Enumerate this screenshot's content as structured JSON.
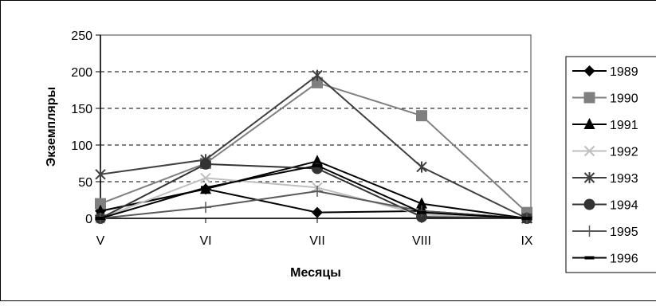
{
  "chart_data": {
    "type": "line",
    "title": "",
    "xlabel": "Месяцы",
    "ylabel": "Экземпляры",
    "categories": [
      "V",
      "VI",
      "VII",
      "VIII",
      "IX"
    ],
    "ylim": [
      0,
      250
    ],
    "yticks": [
      "0",
      "50",
      "100",
      "150",
      "200",
      "250"
    ],
    "grid": "horizontal-dashed",
    "legend_position": "right",
    "series": [
      {
        "name": "1989",
        "values": [
          10,
          40,
          8,
          10,
          0
        ],
        "color": "#000000",
        "marker": "diamond"
      },
      {
        "name": "1990",
        "values": [
          20,
          75,
          185,
          140,
          8
        ],
        "color": "#7f7f7f",
        "marker": "square"
      },
      {
        "name": "1991",
        "values": [
          10,
          40,
          78,
          20,
          0
        ],
        "color": "#000000",
        "marker": "triangle"
      },
      {
        "name": "1992",
        "values": [
          0,
          55,
          42,
          5,
          0
        ],
        "color": "#bfbfbf",
        "marker": "x"
      },
      {
        "name": "1993",
        "values": [
          60,
          80,
          195,
          70,
          0
        ],
        "color": "#404040",
        "marker": "star"
      },
      {
        "name": "1994",
        "values": [
          0,
          74,
          68,
          2,
          0
        ],
        "color": "#333333",
        "marker": "circle"
      },
      {
        "name": "1995",
        "values": [
          0,
          15,
          37,
          10,
          0
        ],
        "color": "#595959",
        "marker": "plus"
      },
      {
        "name": "1996",
        "values": [
          0,
          42,
          72,
          8,
          0
        ],
        "color": "#000000",
        "marker": "dash"
      }
    ]
  }
}
